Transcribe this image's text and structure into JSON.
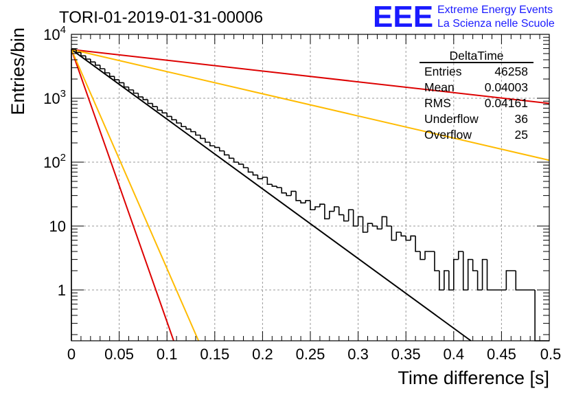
{
  "chart_data": {
    "type": "line",
    "title": "TORI-01-2019-01-31-00006",
    "xlabel": "Time difference [s]",
    "ylabel": "Entries/bin",
    "xlim": [
      0,
      0.5
    ],
    "ylim": [
      0.16,
      10000
    ],
    "y_scale": "log",
    "grid": true,
    "x_ticks": [
      {
        "value": 0,
        "label": "0"
      },
      {
        "value": 0.05,
        "label": "0.05"
      },
      {
        "value": 0.1,
        "label": "0.1"
      },
      {
        "value": 0.15,
        "label": "0.15"
      },
      {
        "value": 0.2,
        "label": "0.2"
      },
      {
        "value": 0.25,
        "label": "0.25"
      },
      {
        "value": 0.3,
        "label": "0.3"
      },
      {
        "value": 0.35,
        "label": "0.35"
      },
      {
        "value": 0.4,
        "label": "0.4"
      },
      {
        "value": 0.45,
        "label": "0.45"
      },
      {
        "value": 0.5,
        "label": "0.5"
      }
    ],
    "y_ticks": [
      {
        "value": 1,
        "base": "1",
        "exp": ""
      },
      {
        "value": 10,
        "base": "10",
        "exp": ""
      },
      {
        "value": 100,
        "base": "10",
        "exp": "2"
      },
      {
        "value": 1000,
        "base": "10",
        "exp": "3"
      },
      {
        "value": 10000,
        "base": "10",
        "exp": "4"
      }
    ],
    "histogram": {
      "bin_width": 0.005,
      "color": "#000000",
      "counts": [
        5800,
        5200,
        4600,
        4100,
        3700,
        3300,
        2900,
        2500,
        2200,
        1950,
        1750,
        1500,
        1350,
        1200,
        1050,
        950,
        830,
        740,
        650,
        590,
        520,
        460,
        410,
        360,
        330,
        300,
        265,
        235,
        205,
        180,
        170,
        150,
        130,
        115,
        100,
        93,
        82,
        70,
        63,
        55,
        58,
        45,
        42,
        40,
        33,
        30,
        35,
        25,
        23,
        25,
        18,
        20,
        22,
        13,
        17,
        20,
        15,
        12,
        18,
        10,
        14,
        8,
        11,
        10,
        9,
        14,
        10,
        6,
        8,
        7,
        6,
        7,
        4,
        3,
        4,
        4,
        2,
        1,
        2,
        1,
        3,
        4,
        1,
        3,
        2,
        1,
        3,
        1,
        1,
        1,
        1,
        2,
        2,
        1,
        1,
        1,
        1,
        0,
        0,
        0
      ]
    },
    "fit_lines": [
      {
        "color": "#000000",
        "x": [
          0,
          0.418
        ],
        "y": [
          5800,
          0.16
        ]
      },
      {
        "color": "#dd0000",
        "x": [
          0,
          0.5
        ],
        "y": [
          5800,
          830
        ]
      },
      {
        "color": "#ffbb00",
        "x": [
          0,
          0.5
        ],
        "y": [
          5800,
          107
        ]
      },
      {
        "color": "#dd0000",
        "x": [
          0,
          0.107
        ],
        "y": [
          5800,
          0.16
        ]
      },
      {
        "color": "#ffbb00",
        "x": [
          0,
          0.133
        ],
        "y": [
          5800,
          0.16
        ]
      }
    ],
    "stats_box": {
      "title": "DeltaTime",
      "rows": [
        {
          "label": "Entries",
          "value": "46258"
        },
        {
          "label": "Mean",
          "value": "0.04003"
        },
        {
          "label": "RMS",
          "value": "0.04161"
        },
        {
          "label": "Underflow",
          "value": "36"
        },
        {
          "label": "Overflow",
          "value": "25"
        }
      ]
    }
  },
  "logo": {
    "mark": "EEE",
    "line1": "Extreme Energy Events",
    "line2": "La Scienza nelle Scuole",
    "color": "#1a1aff"
  }
}
